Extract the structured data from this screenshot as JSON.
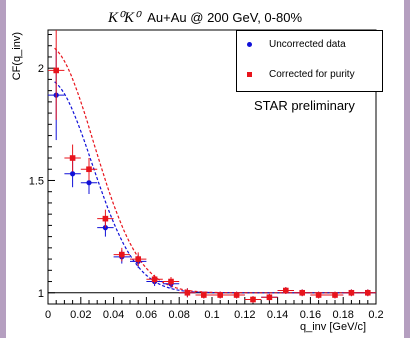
{
  "title": {
    "math": "K⁰K⁰",
    "text": "Au+Au @ 200 GeV, 0-80%"
  },
  "annotation": "STAR preliminary",
  "chart_data": {
    "type": "scatter",
    "xlabel": "q_inv [GeV/c]",
    "ylabel": "CF(q_inv)",
    "xlim": [
      0,
      0.2
    ],
    "ylim": [
      0.95,
      2.17
    ],
    "xticks": [
      0,
      0.02,
      0.04,
      0.06,
      0.08,
      0.1,
      0.12,
      0.14,
      0.16,
      0.18,
      0.2
    ],
    "xtick_labels": [
      "0",
      "0.02",
      "0.04",
      "0.06",
      "0.08",
      "0.1",
      "0.12",
      "0.14",
      "0.16",
      "0.18",
      "0.2"
    ],
    "yticks": [
      1,
      1.5,
      2
    ],
    "ytick_labels": [
      "1",
      "1.5",
      "2"
    ],
    "reference_line_y": 1,
    "legend_position": "top-right",
    "series": [
      {
        "name": "Uncorrected data",
        "color": "#1010d8",
        "marker": "circle",
        "x": [
          0.005,
          0.015,
          0.025,
          0.035,
          0.045,
          0.055,
          0.065,
          0.075,
          0.085,
          0.095,
          0.105,
          0.115,
          0.125,
          0.135,
          0.145,
          0.155,
          0.165,
          0.175,
          0.185,
          0.195
        ],
        "y": [
          1.88,
          1.53,
          1.49,
          1.29,
          1.16,
          1.14,
          1.05,
          1.04,
          1.0,
          0.99,
          0.99,
          0.99,
          0.97,
          0.98,
          1.01,
          1.0,
          0.99,
          0.99,
          1.0,
          1.0
        ],
        "yerr": [
          0.2,
          0.06,
          0.05,
          0.04,
          0.03,
          0.03,
          0.02,
          0.02,
          0.02,
          0.015,
          0.015,
          0.015,
          0.015,
          0.015,
          0.015,
          0.015,
          0.015,
          0.015,
          0.015,
          0.015
        ]
      },
      {
        "name": "Corrected for purity",
        "color": "#e8141c",
        "marker": "square",
        "x": [
          0.005,
          0.015,
          0.025,
          0.035,
          0.045,
          0.055,
          0.065,
          0.075,
          0.085,
          0.095,
          0.105,
          0.115,
          0.125,
          0.135,
          0.145,
          0.155,
          0.165,
          0.175,
          0.185,
          0.195
        ],
        "y": [
          1.99,
          1.6,
          1.55,
          1.33,
          1.17,
          1.15,
          1.06,
          1.05,
          1.0,
          0.99,
          0.99,
          0.99,
          0.97,
          0.98,
          1.01,
          1.0,
          0.99,
          0.99,
          1.0,
          1.0
        ],
        "yerr": [
          0.22,
          0.06,
          0.05,
          0.04,
          0.03,
          0.03,
          0.02,
          0.02,
          0.02,
          0.015,
          0.015,
          0.015,
          0.015,
          0.015,
          0.015,
          0.015,
          0.015,
          0.015,
          0.015,
          0.015
        ]
      }
    ],
    "fit_curves": [
      {
        "series": "Uncorrected data",
        "color": "#1010d8",
        "style": "dashed",
        "lambda": 0.95,
        "r_fm": 5.2
      },
      {
        "series": "Corrected for purity",
        "color": "#e8141c",
        "style": "dashed",
        "lambda": 1.1,
        "r_fm": 5.0
      }
    ]
  }
}
